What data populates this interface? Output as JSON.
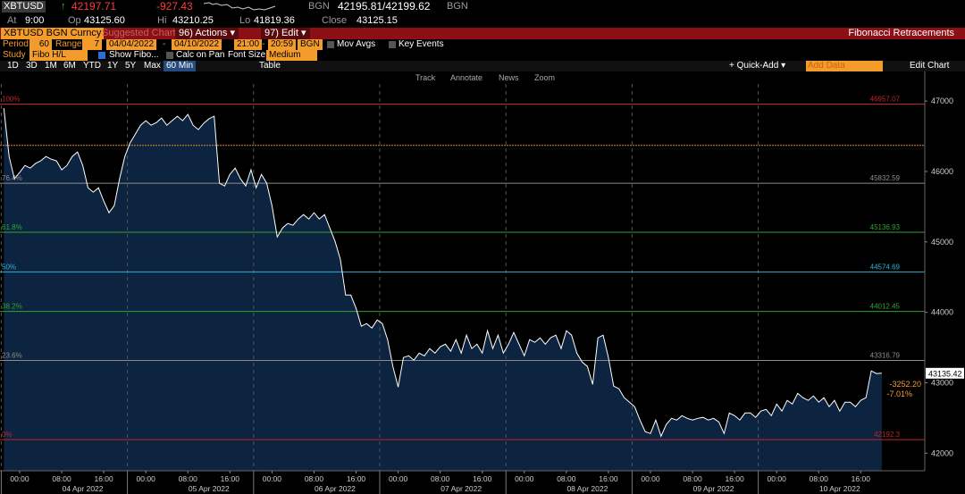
{
  "header": {
    "ticker": "XBTUSD",
    "arrow": "↑",
    "last": "42197.71",
    "change": "-927.43",
    "source": "BGN",
    "bid_ask": "42195.81/42199.62",
    "source2": "BGN",
    "at_label": "At",
    "at": "9:00",
    "open_label": "Op",
    "open": "43125.60",
    "high_label": "Hi",
    "high": "43210.25",
    "low_label": "Lo",
    "low": "41819.36",
    "close_label": "Close",
    "close": "43125.15"
  },
  "title_bar": {
    "security": "XBTUSD BGN Curncy",
    "suggested": "Suggested Charts",
    "actions": "96) Actions ▾",
    "edit": "97) Edit ▾",
    "title": "Fibonacci Retracements"
  },
  "settings": {
    "period_label": "Period",
    "period": "60",
    "range_label": "Range",
    "range": "7",
    "start_date": "04/04/2022",
    "date_sep": "-",
    "end_date": "04/10/2022",
    "start_time": "21:00",
    "time_sep": "-",
    "end_time": "20:59",
    "source": "BGN",
    "mov_avgs": "Mov Avgs",
    "key_events": "Key Events",
    "study_label": "Study",
    "study": "Fibo H/L",
    "show_fibo": "Show Fibo...",
    "calc_on_pan": "Calc on Pan",
    "font_size_label": "Font Size",
    "font_size": "Medium"
  },
  "toolbar": {
    "ranges": [
      "1D",
      "3D",
      "1M",
      "6M",
      "YTD",
      "1Y",
      "5Y",
      "Max"
    ],
    "interval": "60 Min",
    "table": "Table",
    "quick_add": "+ Quick-Add ▾",
    "add_data": "Add Data",
    "edit_chart": "Edit Chart"
  },
  "chart_tools": [
    "Track",
    "Annotate",
    "News",
    "Zoom"
  ],
  "chart_data": {
    "type": "area",
    "color": "#ffffff",
    "fill": "#0c2440",
    "categories": [
      null,
      null,
      null,
      "00:00",
      null,
      null,
      null,
      null,
      null,
      null,
      null,
      "08:00",
      null,
      null,
      null,
      null,
      null,
      null,
      null,
      "16:00",
      null,
      null,
      null,
      null,
      null,
      null,
      null,
      "00:00",
      null,
      null,
      null,
      null,
      null,
      null,
      null,
      "08:00",
      null,
      null,
      null,
      null,
      null,
      null,
      null,
      "16:00",
      null,
      null,
      null,
      null,
      null,
      null,
      null,
      "00:00",
      null,
      null,
      null,
      null,
      null,
      null,
      null,
      "08:00",
      null,
      null,
      null,
      null,
      null,
      null,
      null,
      "16:00",
      null,
      null,
      null,
      null,
      null,
      null,
      null,
      "00:00",
      null,
      null,
      null,
      null,
      null,
      null,
      null,
      "08:00",
      null,
      null,
      null,
      null,
      null,
      null,
      null,
      "16:00",
      null,
      null,
      null,
      null,
      null,
      null,
      null,
      "00:00",
      null,
      null,
      null,
      null,
      null,
      null,
      null,
      "08:00",
      null,
      null,
      null,
      null,
      null,
      null,
      null,
      "16:00",
      null,
      null,
      null,
      null,
      null,
      null,
      null,
      "00:00",
      null,
      null,
      null,
      null,
      null,
      null,
      null,
      "08:00",
      null,
      null,
      null,
      null,
      null,
      null,
      null,
      "16:00",
      null,
      null,
      null,
      null,
      null,
      null,
      null,
      "00:00",
      null,
      null,
      null,
      null,
      null,
      null,
      null,
      "08:00",
      null,
      null,
      null,
      null,
      null,
      null,
      null,
      "16:00",
      null,
      null,
      null,
      null
    ],
    "values": [
      46900,
      46213,
      45896,
      45985,
      46086,
      46048,
      46112,
      46150,
      46213,
      46175,
      46150,
      46023,
      46086,
      46213,
      46277,
      46086,
      45769,
      45706,
      45769,
      45579,
      45414,
      45515,
      45896,
      46213,
      46404,
      46530,
      46657,
      46721,
      46657,
      46695,
      46759,
      46657,
      46721,
      46784,
      46721,
      46810,
      46657,
      46594,
      46683,
      46746,
      46784,
      45833,
      45794,
      45959,
      46048,
      45896,
      45794,
      46023,
      45769,
      45959,
      45833,
      45515,
      45071,
      45198,
      45261,
      45236,
      45325,
      45388,
      45325,
      45414,
      45325,
      45388,
      45198,
      45008,
      44754,
      44246,
      44246,
      44056,
      43802,
      43840,
      43777,
      43891,
      43840,
      43612,
      43231,
      42939,
      43358,
      43383,
      43320,
      43421,
      43383,
      43485,
      43421,
      43510,
      43548,
      43447,
      43612,
      43421,
      43675,
      43485,
      43548,
      43421,
      43739,
      43485,
      43675,
      43421,
      43548,
      43713,
      43548,
      43383,
      43612,
      43574,
      43637,
      43548,
      43637,
      43675,
      43485,
      43739,
      43675,
      43421,
      43294,
      43231,
      42977,
      43637,
      43675,
      43358,
      42952,
      42914,
      42787,
      42724,
      42660,
      42470,
      42305,
      42279,
      42470,
      42241,
      42406,
      42495,
      42470,
      42533,
      42495,
      42470,
      42495,
      42508,
      42470,
      42495,
      42444,
      42279,
      42571,
      42533,
      42470,
      42571,
      42571,
      42508,
      42597,
      42622,
      42533,
      42698,
      42597,
      42749,
      42698,
      42850,
      42787,
      42749,
      42812,
      42724,
      42787,
      42660,
      42749,
      42597,
      42724,
      42724,
      42660,
      42749,
      42787,
      43168,
      43130,
      43135
    ],
    "date_labels": [
      "04 Apr 2022",
      "05 Apr 2022",
      "06 Apr 2022",
      "07 Apr 2022",
      "08 Apr 2022",
      "09 Apr 2022",
      "10 Apr 2022"
    ],
    "ylim": [
      41750,
      47420
    ],
    "yticks": [
      42000,
      43000,
      44000,
      45000,
      46000,
      47000
    ],
    "fib_levels": [
      {
        "label": "100%",
        "value": 46957.07,
        "color": "#c0262b"
      },
      {
        "label": "76.4%",
        "value": 45832.59,
        "color": "#8c8c8c"
      },
      {
        "label": "61.8%",
        "value": 45136.93,
        "color": "#2fa52f"
      },
      {
        "label": "50%",
        "value": 44574.69,
        "color": "#2ab0d0"
      },
      {
        "label": "38.2%",
        "value": 44012.45,
        "color": "#2fa52f"
      },
      {
        "label": "23.6%",
        "value": 43316.79,
        "color": "#8c8c8c"
      },
      {
        "label": "0%",
        "value": 42192.3,
        "color": "#c0262b"
      }
    ],
    "reference_line": {
      "value": 46370,
      "color": "#e08a2a"
    },
    "last_price": "43135.42",
    "net_change": "-3252.20",
    "pct_change": "-7.01%"
  }
}
